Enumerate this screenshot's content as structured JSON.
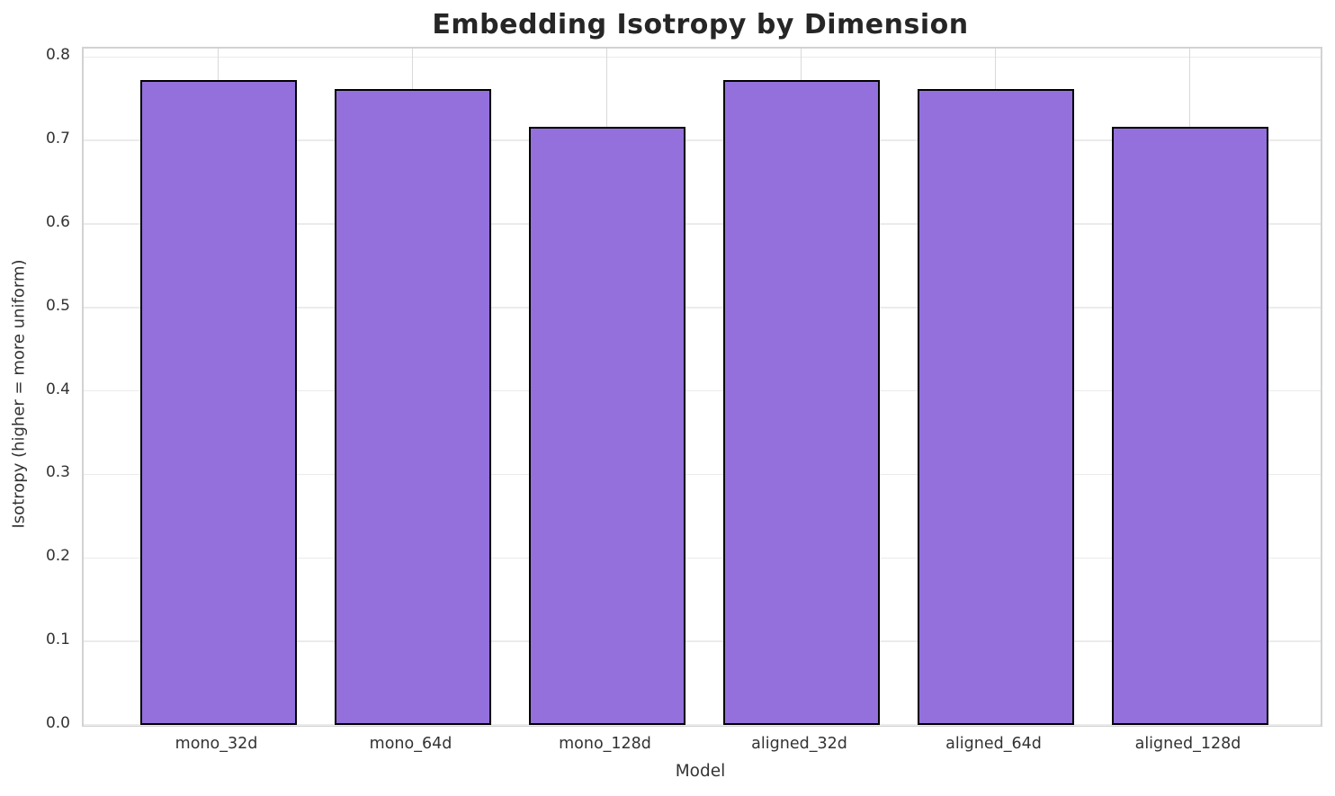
{
  "chart_data": {
    "type": "bar",
    "title": "Embedding Isotropy by Dimension",
    "xlabel": "Model",
    "ylabel": "Isotropy (higher = more uniform)",
    "categories": [
      "mono_32d",
      "mono_64d",
      "mono_128d",
      "aligned_32d",
      "aligned_64d",
      "aligned_128d"
    ],
    "values": [
      0.772,
      0.762,
      0.716,
      0.772,
      0.762,
      0.716
    ],
    "ylim": [
      0.0,
      0.81
    ],
    "yticks": [
      0.0,
      0.1,
      0.2,
      0.3,
      0.4,
      0.5,
      0.6,
      0.7,
      0.8
    ],
    "ytick_labels": [
      "0.0",
      "0.1",
      "0.2",
      "0.3",
      "0.4",
      "0.5",
      "0.6",
      "0.7",
      "0.8"
    ],
    "grid": true,
    "legend": "none",
    "colors": {
      "bar_fill": "#9370DB",
      "bar_edge": "#000000",
      "grid_horizontal": "#ebebeb",
      "grid_vertical": "#d9d9d9",
      "spine": "#d2d2d2",
      "title_text": "#262626",
      "tick_text": "#333333",
      "background": "#ffffff"
    }
  }
}
